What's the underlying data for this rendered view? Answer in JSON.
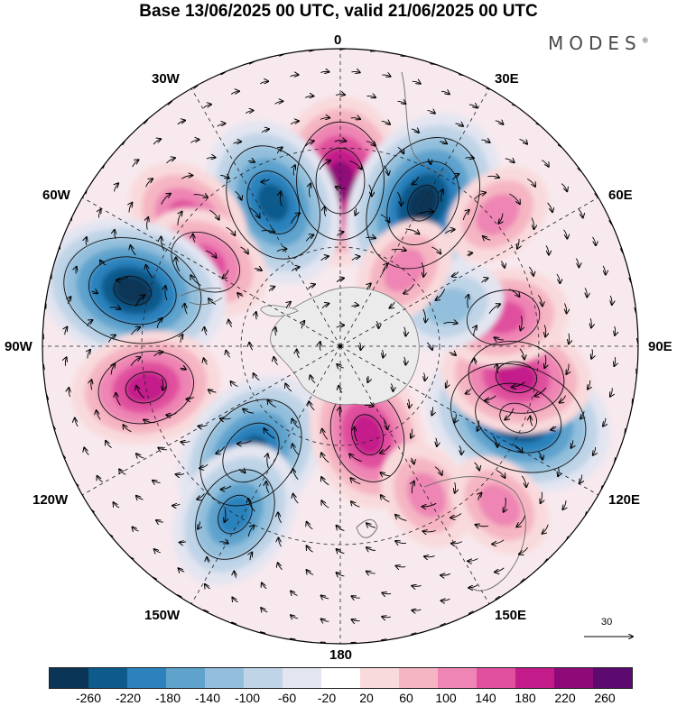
{
  "title": "Base 13/06/2025 00 UTC, valid 21/06/2025 00 UTC",
  "brand": {
    "name": "MODES",
    "mark": "®"
  },
  "longitude_labels": {
    "top": "0",
    "bottom": "180",
    "left": "90W",
    "right": "90E",
    "lon_30w": "30W",
    "lon_30e": "30E",
    "lon_60w": "60W",
    "lon_60e": "60E",
    "lon_120w": "120W",
    "lon_120e": "120E",
    "lon_150w": "150W",
    "lon_150e": "150E"
  },
  "reference_vector": {
    "value": "30"
  },
  "colorbar": {
    "colors": [
      "#0b3556",
      "#0d5a8c",
      "#2b82bd",
      "#5fa3cd",
      "#93bfdc",
      "#c0d4e7",
      "#e3e5f1",
      "#ffffff",
      "#f9dadc",
      "#f5b5c2",
      "#ee85b4",
      "#e0509e",
      "#c41b8b",
      "#8f0a79",
      "#5c0a70"
    ],
    "ticks": [
      "-260",
      "-220",
      "-180",
      "-140",
      "-100",
      "-60",
      "-20",
      "20",
      "60",
      "100",
      "140",
      "180",
      "220",
      "260"
    ]
  },
  "anomaly_centers": [
    {
      "lon": 0,
      "lat": -40,
      "value": 200
    },
    {
      "lon": 30,
      "lat": -40,
      "value": -240
    },
    {
      "lon": -25,
      "lat": -42,
      "value": -200
    },
    {
      "lon": -50,
      "lat": -30,
      "value": 120
    },
    {
      "lon": -58,
      "lat": -42,
      "value": 150
    },
    {
      "lon": -75,
      "lat": -25,
      "value": -260
    },
    {
      "lon": -102,
      "lat": -30,
      "value": 180
    },
    {
      "lon": -140,
      "lat": -48,
      "value": -200
    },
    {
      "lon": -148,
      "lat": -30,
      "value": -180
    },
    {
      "lon": 163,
      "lat": -62,
      "value": 180
    },
    {
      "lon": 112,
      "lat": -32,
      "value": -260
    },
    {
      "lon": 150,
      "lat": -38,
      "value": 100
    },
    {
      "lon": 135,
      "lat": -22,
      "value": 100
    },
    {
      "lon": 100,
      "lat": -36,
      "value": 160
    },
    {
      "lon": 80,
      "lat": -40,
      "value": 140
    },
    {
      "lon": 70,
      "lat": -55,
      "value": -80
    },
    {
      "lon": 40,
      "lat": -60,
      "value": 90
    },
    {
      "lon": 50,
      "lat": -28,
      "value": 80
    }
  ]
}
